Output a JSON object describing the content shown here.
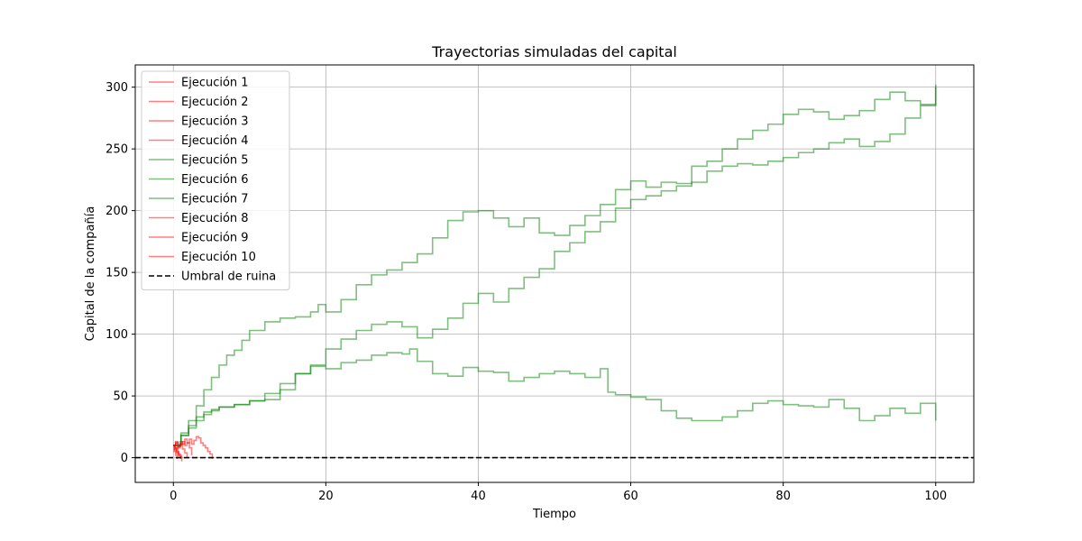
{
  "chart_data": {
    "type": "line",
    "title": "Trayectorias simuladas del capital",
    "xlabel": "Tiempo",
    "ylabel": "Capital de la compañía",
    "xlim": [
      -5,
      105
    ],
    "ylim": [
      -20,
      318
    ],
    "xticks": [
      0,
      20,
      40,
      60,
      80,
      100
    ],
    "yticks": [
      0,
      50,
      100,
      150,
      200,
      250,
      300
    ],
    "grid": true,
    "legend_position": "top-left",
    "colors": {
      "ruined": "#ff0000",
      "survived": "#008000",
      "threshold": "#000000"
    },
    "threshold": {
      "name": "Umbral de ruina",
      "value": 0,
      "style": "dashed"
    },
    "series": [
      {
        "name": "Ejecución 1",
        "status": "ruined",
        "x": [
          0,
          0.2,
          0.4,
          0.6,
          0.9,
          1.1
        ],
        "y": [
          10,
          6,
          8,
          3,
          1,
          -3
        ]
      },
      {
        "name": "Ejecución 2",
        "status": "ruined",
        "x": [
          0,
          0.1,
          0.3,
          0.5
        ],
        "y": [
          10,
          5,
          2,
          -1
        ]
      },
      {
        "name": "Ejecución 3",
        "status": "ruined",
        "x": [
          0,
          0.3,
          0.6,
          0.9,
          1.2,
          1.5,
          1.8,
          2.1,
          2.4,
          2.7,
          3.0,
          3.3,
          3.6,
          3.9,
          4.2,
          4.5,
          4.8,
          5.1
        ],
        "y": [
          10,
          12,
          8,
          11,
          13,
          10,
          12,
          15,
          11,
          14,
          17,
          16,
          12,
          10,
          8,
          5,
          3,
          -1
        ]
      },
      {
        "name": "Ejecución 4",
        "status": "ruined",
        "x": [
          0,
          0.2,
          0.4,
          0.7
        ],
        "y": [
          10,
          7,
          4,
          1
        ]
      },
      {
        "name": "Ejecución 5",
        "status": "survived",
        "x": [
          0,
          1,
          2,
          3,
          4,
          5,
          6,
          7,
          8,
          9,
          10,
          12,
          14,
          16,
          18,
          19,
          20,
          22,
          24,
          26,
          28,
          30,
          32,
          34,
          36,
          38,
          40,
          42,
          44,
          46,
          48,
          50,
          52,
          54,
          56,
          58,
          60,
          62,
          64,
          66,
          68,
          70,
          72,
          74,
          76,
          78,
          80,
          82,
          84,
          86,
          88,
          90,
          92,
          94,
          96,
          98,
          100
        ],
        "y": [
          10,
          20,
          30,
          42,
          55,
          65,
          75,
          83,
          87,
          95,
          103,
          110,
          113,
          114,
          118,
          124,
          118,
          128,
          140,
          148,
          152,
          158,
          165,
          178,
          192,
          199,
          200,
          194,
          187,
          194,
          182,
          180,
          188,
          196,
          205,
          217,
          224,
          219,
          223,
          222,
          236,
          240,
          250,
          258,
          265,
          270,
          278,
          282,
          280,
          274,
          277,
          281,
          290,
          296,
          289,
          286,
          302
        ]
      },
      {
        "name": "Ejecución 6",
        "status": "survived",
        "x": [
          0,
          1,
          2,
          3,
          4,
          5,
          6,
          8,
          10,
          12,
          14,
          16,
          18,
          20,
          22,
          24,
          26,
          28,
          30,
          32,
          34,
          36,
          38,
          40,
          42,
          44,
          46,
          48,
          50,
          52,
          54,
          56,
          58,
          60,
          62,
          64,
          66,
          68,
          70,
          72,
          74,
          76,
          78,
          80,
          82,
          84,
          86,
          88,
          90,
          92,
          94,
          96,
          98,
          100
        ],
        "y": [
          10,
          18,
          26,
          33,
          37,
          39,
          41,
          43,
          46,
          47,
          55,
          68,
          75,
          88,
          96,
          103,
          108,
          110,
          106,
          97,
          104,
          113,
          125,
          133,
          126,
          137,
          146,
          153,
          167,
          174,
          183,
          191,
          202,
          209,
          212,
          216,
          220,
          223,
          232,
          236,
          238,
          237,
          240,
          243,
          247,
          250,
          255,
          258,
          252,
          256,
          262,
          275,
          285,
          300
        ]
      },
      {
        "name": "Ejecución 7",
        "status": "survived",
        "x": [
          0,
          1,
          2,
          3,
          4,
          5,
          6,
          8,
          10,
          12,
          14,
          16,
          18,
          20,
          22,
          24,
          26,
          28,
          30,
          31,
          32,
          34,
          36,
          38,
          40,
          42,
          44,
          46,
          48,
          50,
          52,
          54,
          56,
          57,
          58,
          60,
          62,
          64,
          66,
          68,
          70,
          72,
          74,
          76,
          78,
          80,
          82,
          84,
          86,
          88,
          90,
          92,
          94,
          96,
          98,
          100
        ],
        "y": [
          10,
          18,
          24,
          30,
          35,
          38,
          41,
          43,
          46,
          52,
          60,
          68,
          74,
          72,
          77,
          79,
          83,
          85,
          84,
          88,
          78,
          68,
          66,
          73,
          70,
          69,
          62,
          65,
          68,
          70,
          68,
          65,
          72,
          53,
          51,
          49,
          47,
          38,
          32,
          30,
          30,
          33,
          38,
          44,
          46,
          43,
          42,
          41,
          47,
          40,
          30,
          34,
          40,
          36,
          44,
          30
        ]
      },
      {
        "name": "Ejecución 8",
        "status": "ruined",
        "x": [
          0,
          0.2,
          0.4,
          0.7,
          1.0
        ],
        "y": [
          10,
          8,
          5,
          2,
          -1
        ]
      },
      {
        "name": "Ejecución 9",
        "status": "ruined",
        "x": [
          0,
          0.3,
          0.6,
          0.9,
          1.2,
          1.5,
          1.8
        ],
        "y": [
          10,
          13,
          9,
          11,
          7,
          4,
          0
        ]
      },
      {
        "name": "Ejecución 10",
        "status": "ruined",
        "x": [
          0,
          0.3,
          0.6,
          0.9,
          1.2,
          1.5,
          1.8,
          2.1,
          2.4
        ],
        "y": [
          10,
          12,
          9,
          13,
          11,
          15,
          12,
          8,
          2
        ]
      }
    ]
  }
}
